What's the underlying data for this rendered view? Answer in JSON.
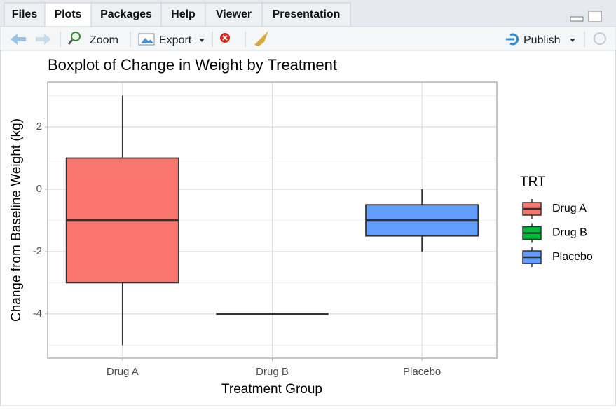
{
  "tabs": [
    "Files",
    "Plots",
    "Packages",
    "Help",
    "Viewer",
    "Presentation"
  ],
  "toolbar": {
    "zoom": "Zoom",
    "export": "Export",
    "publish": "Publish"
  },
  "chart_data": {
    "type": "box",
    "title": "Boxplot of Change in Weight by Treatment",
    "x_label": "Treatment Group",
    "y_label": "Change from Baseline Weight (kg)",
    "categories": [
      "Drug A",
      "Drug B",
      "Placebo"
    ],
    "legend_title": "TRT",
    "series": [
      {
        "name": "Drug A",
        "color": "#F8766D",
        "min": -5,
        "q1": -3,
        "median": -1,
        "q3": 1,
        "max": 3
      },
      {
        "name": "Drug B",
        "color": "#00BA38",
        "min": -4,
        "q1": -4,
        "median": -4,
        "q3": -4,
        "max": -4
      },
      {
        "name": "Placebo",
        "color": "#619CFF",
        "min": -2,
        "q1": -1.5,
        "median": -1,
        "q3": -0.5,
        "max": 0
      }
    ],
    "ylim": [
      -5.42,
      3.44
    ],
    "yticks": [
      -4,
      -2,
      0,
      2
    ],
    "grid": true
  }
}
